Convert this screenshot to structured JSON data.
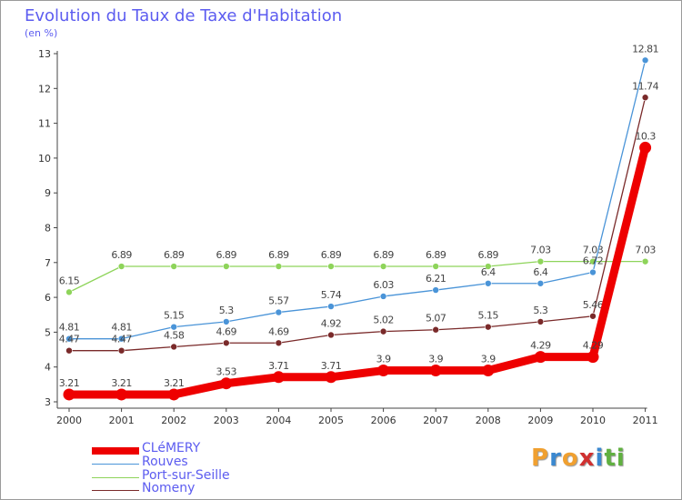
{
  "title": "Evolution du Taux de Taxe d'Habitation",
  "unit": "(en %)",
  "logo": {
    "letters": [
      "P",
      "r",
      "o",
      "x",
      "i",
      "t",
      "i"
    ],
    "colors": [
      "#f0a030",
      "#3a88d0",
      "#f0a030",
      "#d03030",
      "#3a88d0",
      "#60b040",
      "#60b040"
    ]
  },
  "chart_data": {
    "type": "line",
    "x": [
      "2000",
      "2001",
      "2002",
      "2003",
      "2004",
      "2005",
      "2006",
      "2007",
      "2008",
      "2009",
      "2010",
      "2011"
    ],
    "ylim": [
      3,
      13
    ],
    "yticks": [
      "3",
      "4",
      "5",
      "6",
      "7",
      "8",
      "9",
      "10",
      "11",
      "12",
      "13"
    ],
    "grid": false,
    "legend_position": "bottom-left",
    "series": [
      {
        "name": "Port-sur-Seille",
        "color": "#8ed45a",
        "values": [
          6.15,
          6.89,
          6.89,
          6.89,
          6.89,
          6.89,
          6.89,
          6.89,
          6.89,
          7.03,
          7.03,
          7.03
        ],
        "labels": [
          "6.15",
          "6.89",
          "6.89",
          "6.89",
          "6.89",
          "6.89",
          "6.89",
          "6.89",
          "6.89",
          "7.03",
          "7.03",
          "7.03"
        ]
      },
      {
        "name": "Rouves",
        "color": "#4a94d8",
        "values": [
          4.81,
          4.81,
          5.15,
          5.3,
          5.57,
          5.74,
          6.03,
          6.21,
          6.4,
          6.4,
          6.72,
          12.81
        ],
        "labels": [
          "4.81",
          "4.81",
          "5.15",
          "5.3",
          "5.57",
          "5.74",
          "6.03",
          "6.21",
          "6.4",
          "6.4",
          "6.72",
          "12.81"
        ]
      },
      {
        "name": "Nomeny",
        "color": "#7a2a2a",
        "values": [
          4.47,
          4.47,
          4.58,
          4.69,
          4.69,
          4.92,
          5.02,
          5.07,
          5.15,
          5.3,
          5.46,
          11.74
        ],
        "labels": [
          "4.47",
          "4.47",
          "4.58",
          "4.69",
          "4.69",
          "4.92",
          "5.02",
          "5.07",
          "5.15",
          "5.3",
          "5.46",
          "11.74"
        ]
      },
      {
        "name": "CLéMERY",
        "color": "#ee0000",
        "values": [
          3.21,
          3.21,
          3.21,
          3.53,
          3.71,
          3.71,
          3.9,
          3.9,
          3.9,
          4.29,
          4.29,
          10.3
        ],
        "labels": [
          "3.21",
          "3.21",
          "3.21",
          "3.53",
          "3.71",
          "3.71",
          "3.9",
          "3.9",
          "3.9",
          "4.29",
          "4.29",
          "10.3"
        ]
      }
    ],
    "legend": [
      {
        "name": "CLéMERY",
        "color": "#ee0000"
      },
      {
        "name": "Rouves",
        "color": "#4a94d8"
      },
      {
        "name": "Port-sur-Seille",
        "color": "#8ed45a"
      },
      {
        "name": "Nomeny",
        "color": "#7a2a2a"
      }
    ]
  }
}
